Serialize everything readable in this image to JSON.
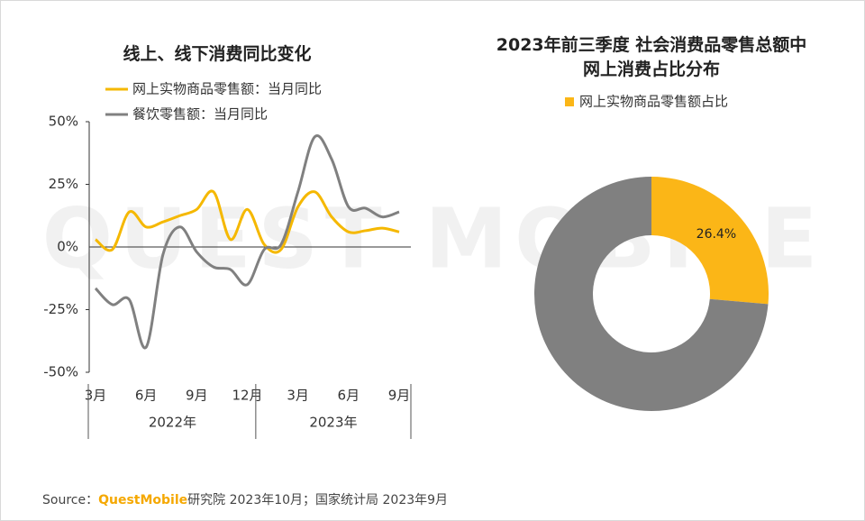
{
  "watermark": "QUEST MOBILE",
  "chart_data": [
    {
      "type": "line",
      "title": "线上、线下消费同比变化",
      "categories": [
        "3月",
        null,
        null,
        "6月",
        null,
        null,
        "9月",
        null,
        null,
        "12月",
        null,
        null,
        "3月",
        null,
        null,
        "6月",
        null,
        null,
        "9月"
      ],
      "groups": [
        "2022年",
        "2023年"
      ],
      "series": [
        {
          "name": "网上实物商品零售额：当月同比",
          "color": "#f5b800",
          "values": [
            3,
            -1,
            14,
            8,
            10,
            12.5,
            15,
            22,
            3,
            15,
            1,
            -1,
            16,
            22,
            12,
            6,
            6.5,
            7.5,
            6
          ]
        },
        {
          "name": "餐饮零售额：当月同比",
          "color": "#808080",
          "values": [
            -16.5,
            -23,
            -21,
            -40,
            -3,
            8,
            -2,
            -8,
            -9,
            -15,
            -1,
            1,
            22,
            44,
            35,
            16,
            15.5,
            12,
            14
          ]
        }
      ],
      "ylim": [
        -50,
        50
      ],
      "yticks": [
        {
          "value": -50,
          "label": "-50%"
        },
        {
          "value": -25,
          "label": "-25%"
        },
        {
          "value": 0,
          "label": "0%"
        },
        {
          "value": 25,
          "label": "25%"
        },
        {
          "value": 50,
          "label": "50%"
        }
      ]
    },
    {
      "type": "donut",
      "title": "2023年前三季度 社会消费品零售总额中\n网上消费占比分布",
      "categories": [
        "网上实物商品零售额占比",
        null
      ],
      "values": [
        26.4,
        73.6
      ],
      "value_labels": [
        "26.4%",
        null
      ],
      "colors": [
        "#fbb617",
        "#808080"
      ]
    }
  ],
  "footer": {
    "label": "Source：",
    "brand": "QuestMobile",
    "text": "研究院 2023年10月；国家统计局 2023年9月"
  }
}
